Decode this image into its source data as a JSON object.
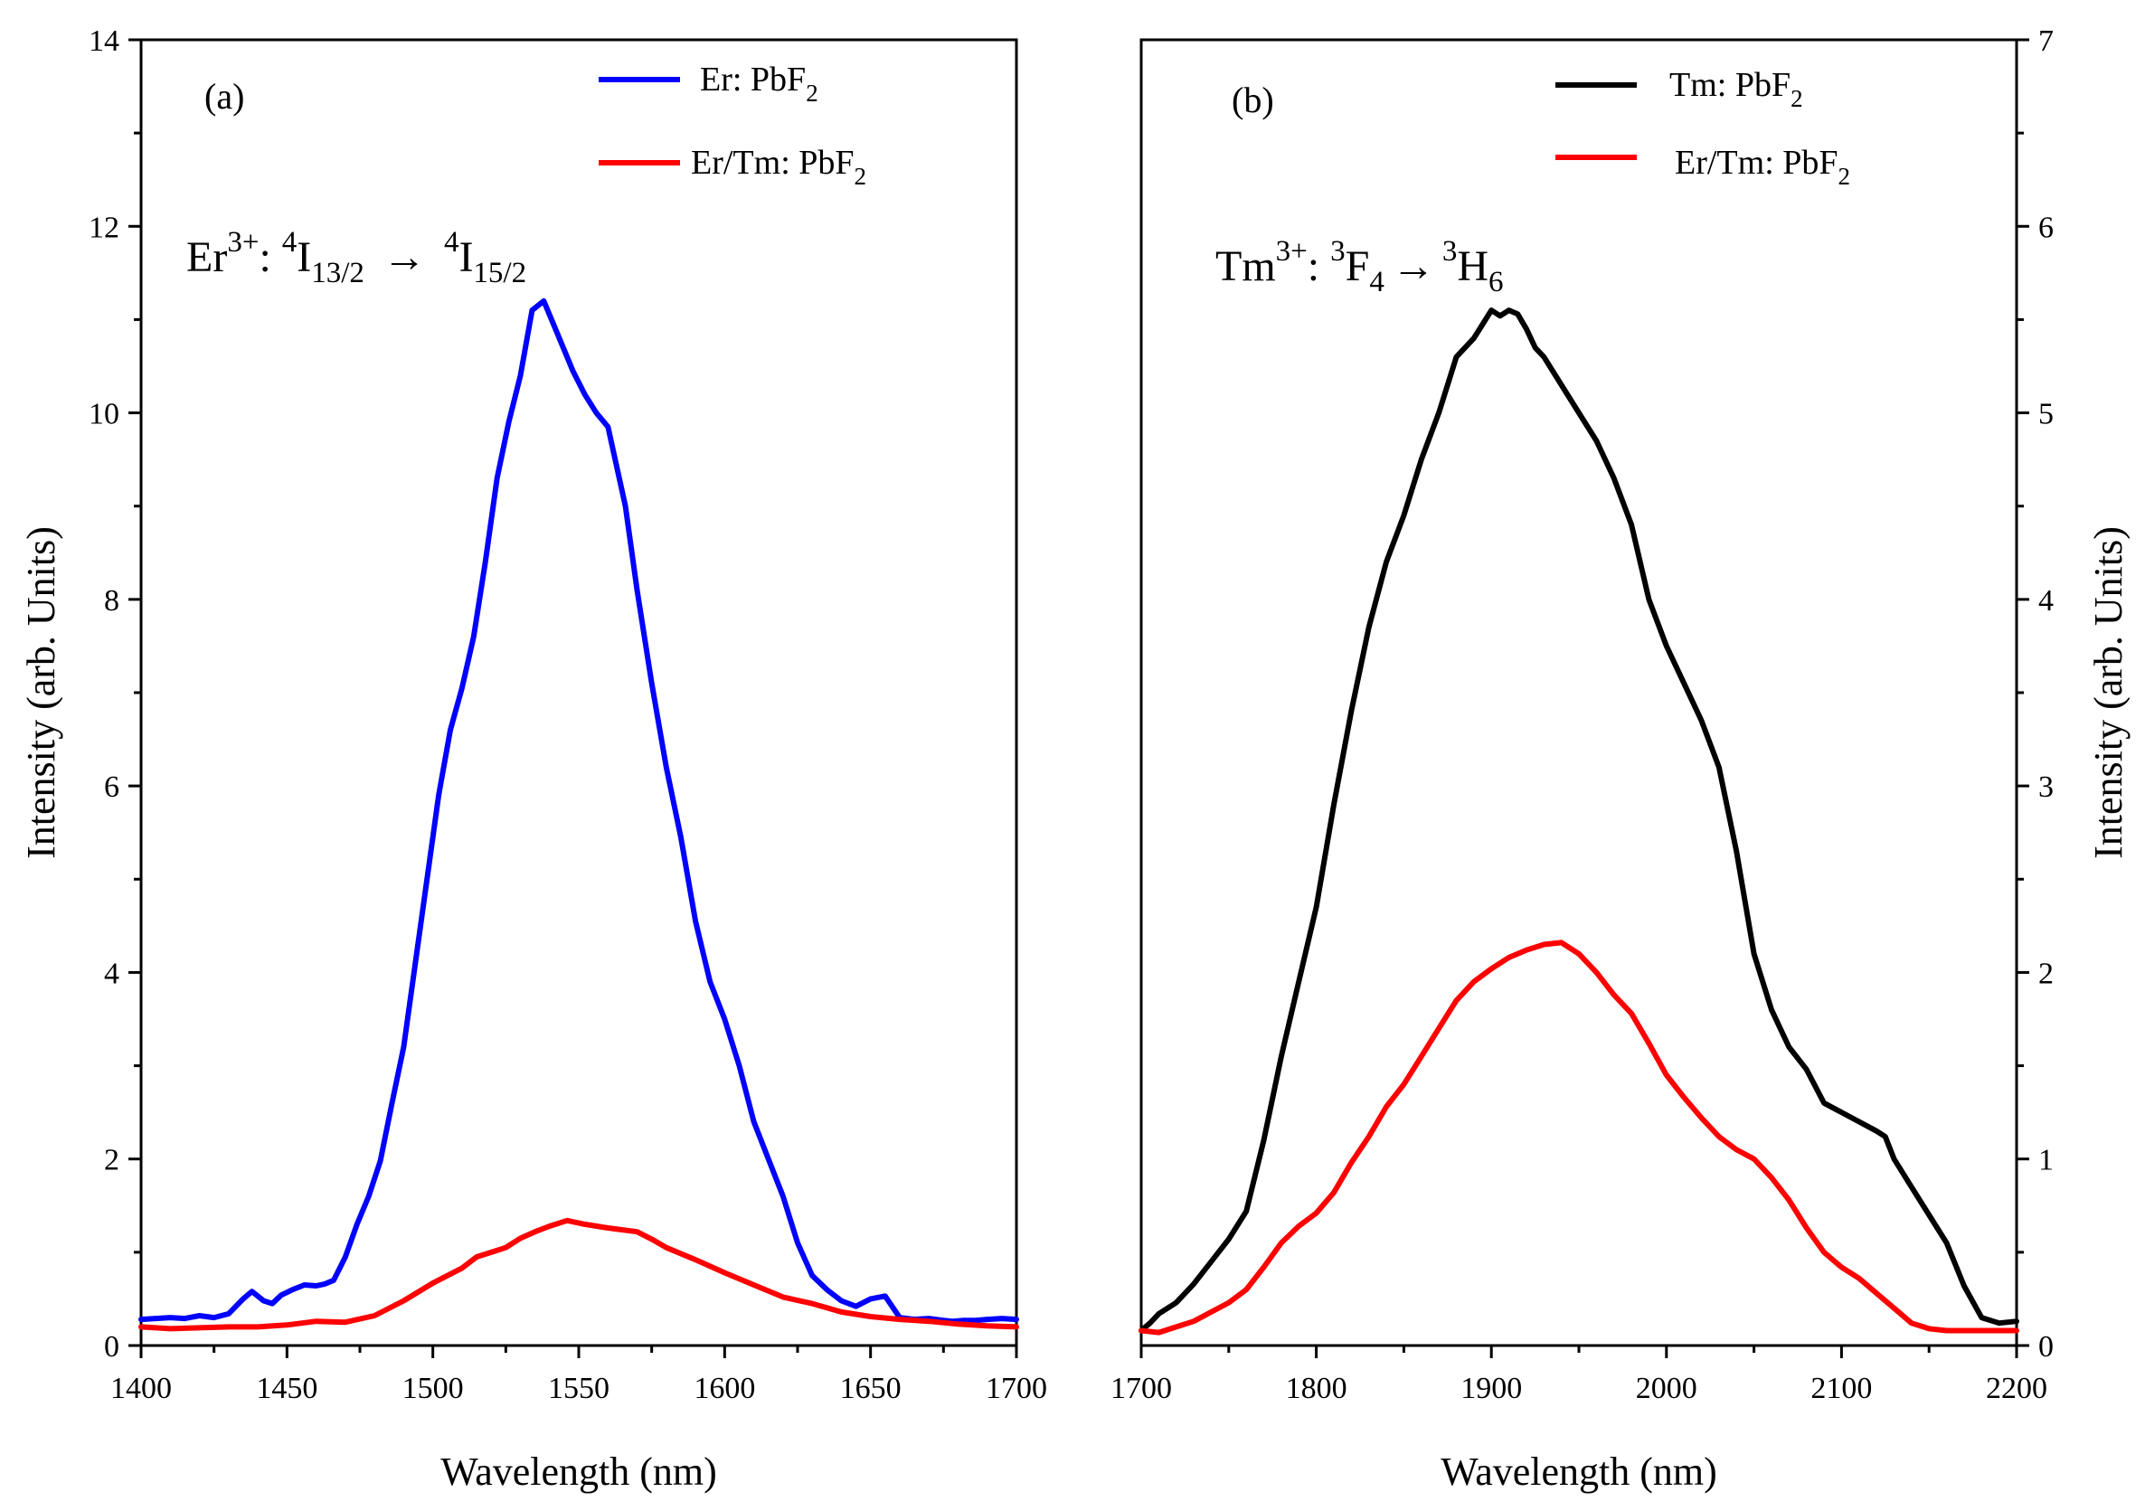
{
  "chart_data": [
    {
      "type": "line",
      "panel_label": "(a)",
      "xlabel": "Wavelength (nm)",
      "ylabel": "Intensity (arb. Units)",
      "xlim": [
        1400,
        1700
      ],
      "ylim": [
        0,
        14
      ],
      "xticks": [
        "1400",
        "1450",
        "1500",
        "1550",
        "1600",
        "1650",
        "1700"
      ],
      "yticks": [
        "0",
        "2",
        "4",
        "6",
        "8",
        "10",
        "12",
        "14"
      ],
      "annotation": {
        "ion": "Er",
        "ion_charge": "3+",
        "colon": ":",
        "upper_sup": "4",
        "upper_base": "I",
        "upper_sub": "13/2",
        "arrow": "→",
        "lower_sup": "4",
        "lower_base": "I",
        "lower_sub": "15/2"
      },
      "series": [
        {
          "name": "Er: PbF2",
          "legend_main": "Er: PbF",
          "legend_sub": "2",
          "color": "#0000ff",
          "x": [
            1400,
            1405,
            1410,
            1415,
            1420,
            1425,
            1430,
            1435,
            1438,
            1442,
            1445,
            1448,
            1452,
            1456,
            1460,
            1463,
            1466,
            1470,
            1474,
            1478,
            1482,
            1486,
            1490,
            1494,
            1498,
            1502,
            1506,
            1510,
            1514,
            1518,
            1522,
            1526,
            1530,
            1534,
            1538,
            1542,
            1546,
            1548,
            1552,
            1556,
            1560,
            1566,
            1570,
            1575,
            1580,
            1585,
            1590,
            1595,
            1600,
            1605,
            1610,
            1615,
            1620,
            1625,
            1630,
            1635,
            1640,
            1645,
            1650,
            1655,
            1660,
            1665,
            1670,
            1675,
            1678,
            1682,
            1686,
            1690,
            1695,
            1700
          ],
          "y": [
            0.28,
            0.29,
            0.3,
            0.29,
            0.32,
            0.3,
            0.34,
            0.5,
            0.58,
            0.48,
            0.45,
            0.54,
            0.6,
            0.65,
            0.64,
            0.66,
            0.7,
            0.95,
            1.3,
            1.6,
            1.98,
            2.6,
            3.2,
            4.1,
            5.0,
            5.9,
            6.6,
            7.05,
            7.6,
            8.4,
            9.3,
            9.9,
            10.4,
            11.1,
            11.2,
            10.9,
            10.6,
            10.45,
            10.2,
            10.0,
            9.85,
            9.0,
            8.1,
            7.1,
            6.2,
            5.45,
            4.55,
            3.9,
            3.5,
            3.0,
            2.4,
            2.0,
            1.6,
            1.1,
            0.75,
            0.6,
            0.48,
            0.42,
            0.5,
            0.53,
            0.3,
            0.28,
            0.29,
            0.27,
            0.26,
            0.27,
            0.27,
            0.28,
            0.29,
            0.28
          ]
        },
        {
          "name": "Er/Tm: PbF2",
          "legend_main": "Er/Tm: PbF",
          "legend_sub": "2",
          "color": "#ff0000",
          "x": [
            1400,
            1410,
            1420,
            1430,
            1440,
            1450,
            1460,
            1470,
            1480,
            1490,
            1500,
            1510,
            1515,
            1520,
            1525,
            1530,
            1535,
            1540,
            1546,
            1552,
            1560,
            1570,
            1575,
            1580,
            1590,
            1600,
            1610,
            1620,
            1630,
            1640,
            1650,
            1660,
            1670,
            1680,
            1690,
            1700
          ],
          "y": [
            0.2,
            0.18,
            0.19,
            0.2,
            0.2,
            0.22,
            0.26,
            0.25,
            0.32,
            0.48,
            0.67,
            0.83,
            0.95,
            1.0,
            1.05,
            1.15,
            1.22,
            1.28,
            1.34,
            1.3,
            1.26,
            1.22,
            1.14,
            1.05,
            0.92,
            0.78,
            0.65,
            0.52,
            0.45,
            0.36,
            0.31,
            0.28,
            0.26,
            0.23,
            0.21,
            0.2
          ]
        }
      ]
    },
    {
      "type": "line",
      "panel_label": "(b)",
      "xlabel": "Wavelength (nm)",
      "ylabel": "Intensity (arb. Units)",
      "xlim": [
        1700,
        2200
      ],
      "ylim": [
        0,
        7
      ],
      "xticks": [
        "1700",
        "1800",
        "1900",
        "2000",
        "2100",
        "2200"
      ],
      "yticks": [
        "0",
        "1",
        "2",
        "3",
        "4",
        "5",
        "6",
        "7"
      ],
      "annotation": {
        "ion": "Tm",
        "ion_charge": "3+",
        "colon": ":",
        "upper_sup": "3",
        "upper_base": "F",
        "upper_sub": "4",
        "arrow": "→",
        "lower_sup": "3",
        "lower_base": "H",
        "lower_sub": "6"
      },
      "series": [
        {
          "name": "Tm: PbF2",
          "legend_main": "Tm: PbF",
          "legend_sub": "2",
          "color": "#000000",
          "x": [
            1700,
            1705,
            1710,
            1720,
            1730,
            1740,
            1750,
            1760,
            1770,
            1780,
            1790,
            1800,
            1810,
            1820,
            1830,
            1840,
            1850,
            1860,
            1870,
            1880,
            1890,
            1900,
            1905,
            1910,
            1915,
            1920,
            1925,
            1930,
            1940,
            1950,
            1960,
            1970,
            1980,
            1990,
            2000,
            2010,
            2020,
            2030,
            2040,
            2050,
            2060,
            2070,
            2080,
            2090,
            2100,
            2110,
            2120,
            2125,
            2130,
            2140,
            2150,
            2160,
            2170,
            2180,
            2190,
            2200
          ],
          "y": [
            0.08,
            0.12,
            0.17,
            0.23,
            0.33,
            0.45,
            0.57,
            0.72,
            1.1,
            1.55,
            1.95,
            2.35,
            2.9,
            3.4,
            3.85,
            4.2,
            4.45,
            4.75,
            5.0,
            5.3,
            5.4,
            5.55,
            5.52,
            5.55,
            5.53,
            5.45,
            5.35,
            5.3,
            5.15,
            5.0,
            4.85,
            4.65,
            4.4,
            4.0,
            3.75,
            3.55,
            3.35,
            3.1,
            2.65,
            2.1,
            1.8,
            1.6,
            1.48,
            1.3,
            1.25,
            1.2,
            1.15,
            1.12,
            1.0,
            0.85,
            0.7,
            0.55,
            0.32,
            0.15,
            0.12,
            0.13
          ]
        },
        {
          "name": "Er/Tm: PbF2",
          "legend_main": "Er/Tm: PbF",
          "legend_sub": "2",
          "color": "#ff0000",
          "x": [
            1700,
            1710,
            1720,
            1730,
            1740,
            1750,
            1760,
            1770,
            1780,
            1790,
            1800,
            1810,
            1820,
            1830,
            1840,
            1850,
            1860,
            1870,
            1880,
            1890,
            1900,
            1910,
            1920,
            1930,
            1940,
            1950,
            1960,
            1970,
            1980,
            1990,
            2000,
            2010,
            2020,
            2030,
            2040,
            2050,
            2060,
            2070,
            2080,
            2090,
            2100,
            2110,
            2120,
            2130,
            2140,
            2150,
            2160,
            2170,
            2180,
            2190,
            2200
          ],
          "y": [
            0.08,
            0.07,
            0.1,
            0.13,
            0.18,
            0.23,
            0.3,
            0.42,
            0.55,
            0.64,
            0.71,
            0.82,
            0.98,
            1.12,
            1.28,
            1.4,
            1.55,
            1.7,
            1.85,
            1.95,
            2.02,
            2.08,
            2.12,
            2.15,
            2.16,
            2.1,
            2.0,
            1.88,
            1.78,
            1.62,
            1.45,
            1.33,
            1.22,
            1.12,
            1.05,
            1.0,
            0.9,
            0.78,
            0.63,
            0.5,
            0.42,
            0.36,
            0.28,
            0.2,
            0.12,
            0.09,
            0.08,
            0.08,
            0.08,
            0.08,
            0.08
          ]
        }
      ]
    }
  ]
}
